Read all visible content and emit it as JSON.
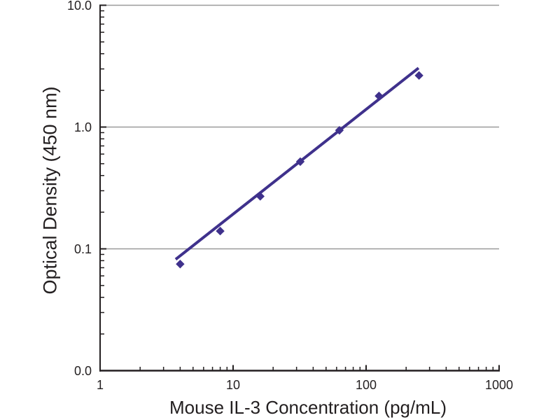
{
  "chart_data": {
    "type": "scatter",
    "title": "",
    "xlabel": "Mouse IL-3 Concentration (pg/mL)",
    "ylabel": "Optical Density (450 nm)",
    "x_scale": "log",
    "y_scale": "log",
    "xlim": [
      1,
      1000
    ],
    "ylim": [
      0.01,
      10
    ],
    "grid": "horizontal-major-only",
    "legend": "none",
    "x_ticks": [
      {
        "value": 1,
        "label": "1"
      },
      {
        "value": 10,
        "label": "10"
      },
      {
        "value": 100,
        "label": "100"
      },
      {
        "value": 1000,
        "label": "1000"
      }
    ],
    "y_ticks": [
      {
        "value": 10,
        "label": "10.0"
      },
      {
        "value": 1,
        "label": "1.0"
      },
      {
        "value": 0.1,
        "label": "0.1"
      },
      {
        "value": 0.01,
        "label": "0.0"
      }
    ],
    "y_gridlines": [
      10,
      1,
      0.1
    ],
    "series": [
      {
        "name": "standard-curve-points",
        "type": "scatter",
        "marker": "diamond",
        "color": "#3F318C",
        "x": [
          4,
          8,
          16,
          32,
          63,
          125,
          250
        ],
        "y": [
          0.075,
          0.14,
          0.27,
          0.52,
          0.94,
          1.8,
          2.65
        ]
      },
      {
        "name": "linear-fit-line",
        "type": "line",
        "color": "#3F318C",
        "x": [
          3.7,
          248
        ],
        "y": [
          0.082,
          3.05
        ]
      }
    ],
    "colors": {
      "curve": "#3F318C",
      "gridline": "#9A9A9A",
      "axis": "#231F20",
      "background": "#FFFFFF"
    }
  }
}
